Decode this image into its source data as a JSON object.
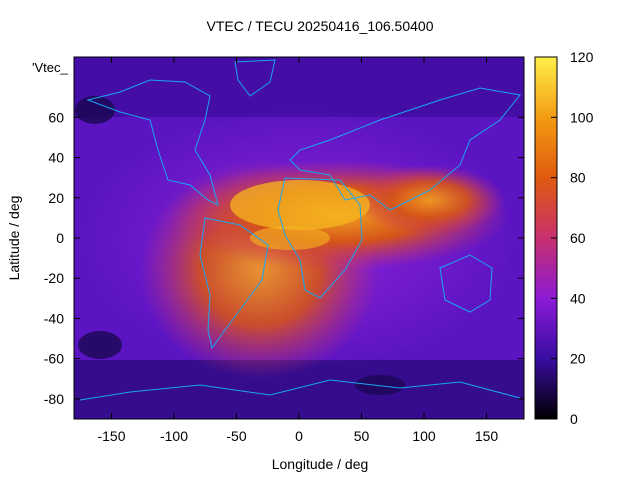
{
  "title": "VTEC / TECU 20250416_106.50400",
  "series_tag": "'Vtec_",
  "xlabel": "Longitude / deg",
  "ylabel": "Latitude / deg",
  "colors": {
    "bg_low": "#2a0e88",
    "mid": "#8a1ad6",
    "high": "#d84a1a",
    "peak": "#f9bf20",
    "coast": "#19a6f0"
  },
  "chart_data": {
    "type": "heatmap",
    "xticks": [
      -150,
      -100,
      -50,
      0,
      50,
      100,
      150
    ],
    "yticks": [
      60,
      40,
      20,
      0,
      -20,
      -40,
      -60,
      -80
    ],
    "xlim": [
      -180,
      180
    ],
    "ylim": [
      -90,
      90
    ],
    "colorbar": {
      "ticks": [
        0,
        20,
        40,
        60,
        80,
        100,
        120
      ],
      "range": [
        0,
        120
      ]
    }
  }
}
